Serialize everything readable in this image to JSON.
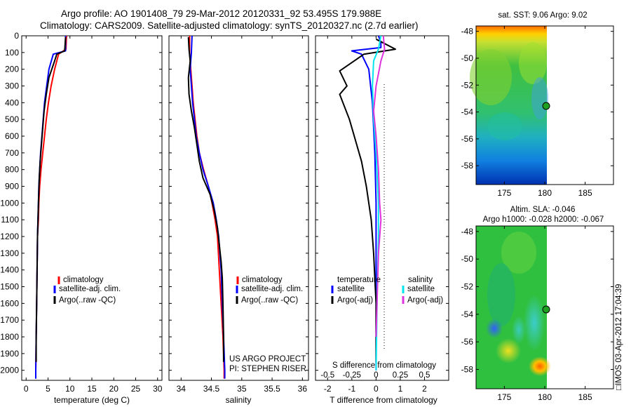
{
  "header": {
    "title_line1": "Argo profile: AO 1901408_79 29-Mar-2012 20120331_92 53.495S 179.988E",
    "title_line2": "Climatology: CARS2009. Satellite-adjusted climatology: synTS_20120327.nc (2.7d earlier)"
  },
  "side_text": "□IMOS 03-Apr-2012 17:04:39",
  "colors": {
    "climatology": "#ff0000",
    "satellite": "#0000ff",
    "argo": "#000000",
    "sal_sat": "#00e5ee",
    "sal_argo": "#dd33dd"
  },
  "chart_data": [
    {
      "type": "line",
      "id": "temperature_profile",
      "xlabel": "temperature (deg C)",
      "xlim": [
        -1,
        31
      ],
      "xticks": [
        0,
        5,
        10,
        15,
        20,
        25,
        30
      ],
      "ylim": [
        2060,
        0
      ],
      "yticks": [
        0,
        100,
        200,
        300,
        400,
        500,
        600,
        700,
        800,
        900,
        1000,
        1100,
        1200,
        1300,
        1400,
        1500,
        1600,
        1700,
        1800,
        1900,
        2000
      ],
      "legend": [
        "climatology",
        "satellite-adj. clim.",
        "Argo(..raw -QC)"
      ],
      "series": [
        {
          "name": "climatology",
          "color": "#ff0000",
          "points": [
            [
              9.2,
              0
            ],
            [
              9.1,
              80
            ],
            [
              7.4,
              110
            ],
            [
              6.5,
              200
            ],
            [
              5.7,
              300
            ],
            [
              5.1,
              400
            ],
            [
              4.6,
              500
            ],
            [
              4.2,
              600
            ],
            [
              3.8,
              700
            ],
            [
              3.4,
              800
            ],
            [
              3.1,
              900
            ],
            [
              2.9,
              1000
            ],
            [
              2.8,
              1100
            ],
            [
              2.6,
              1200
            ],
            [
              2.5,
              1400
            ],
            [
              2.4,
              1600
            ],
            [
              2.3,
              1800
            ],
            [
              2.2,
              2000
            ],
            [
              2.2,
              2050
            ]
          ]
        },
        {
          "name": "satellite-adj. clim.",
          "color": "#0000ff",
          "points": [
            [
              9.0,
              0
            ],
            [
              9.0,
              90
            ],
            [
              6.2,
              110
            ],
            [
              5.2,
              200
            ],
            [
              4.7,
              300
            ],
            [
              4.2,
              400
            ],
            [
              3.9,
              500
            ],
            [
              3.6,
              600
            ],
            [
              3.3,
              700
            ],
            [
              3.1,
              800
            ],
            [
              2.9,
              900
            ],
            [
              2.8,
              1000
            ],
            [
              2.6,
              1200
            ],
            [
              2.5,
              1400
            ],
            [
              2.4,
              1600
            ],
            [
              2.3,
              1800
            ],
            [
              2.2,
              2000
            ],
            [
              2.2,
              2050
            ]
          ]
        },
        {
          "name": "Argo(..raw -QC)",
          "color": "#000000",
          "points": [
            [
              9.0,
              8
            ],
            [
              8.8,
              90
            ],
            [
              7.0,
              110
            ],
            [
              6.5,
              150
            ],
            [
              5.2,
              250
            ],
            [
              4.6,
              350
            ],
            [
              4.1,
              450
            ],
            [
              3.8,
              550
            ],
            [
              3.5,
              650
            ],
            [
              3.2,
              750
            ],
            [
              3.0,
              850
            ],
            [
              2.8,
              1000
            ],
            [
              2.6,
              1200
            ],
            [
              2.5,
              1400
            ],
            [
              2.4,
              1600
            ],
            [
              2.3,
              1800
            ],
            [
              2.3,
              1950
            ]
          ]
        }
      ]
    },
    {
      "type": "line",
      "id": "salinity_profile",
      "xlabel": "salinity",
      "xlim": [
        33.8,
        36.1
      ],
      "xticks": [
        34,
        34.5,
        35,
        35.5,
        36
      ],
      "ylim": [
        2060,
        0
      ],
      "legend": [
        "climatology",
        "satellite-adj. clim.",
        "Argo(..raw -QC)"
      ],
      "series": [
        {
          "name": "climatology",
          "color": "#ff0000",
          "points": [
            [
              34.14,
              0
            ],
            [
              34.14,
              100
            ],
            [
              34.16,
              200
            ],
            [
              34.18,
              300
            ],
            [
              34.2,
              400
            ],
            [
              34.23,
              500
            ],
            [
              34.26,
              600
            ],
            [
              34.3,
              700
            ],
            [
              34.37,
              800
            ],
            [
              34.45,
              900
            ],
            [
              34.51,
              1000
            ],
            [
              34.56,
              1100
            ],
            [
              34.6,
              1200
            ],
            [
              34.63,
              1400
            ],
            [
              34.66,
              1600
            ],
            [
              34.69,
              1800
            ],
            [
              34.71,
              2000
            ],
            [
              34.71,
              2050
            ]
          ]
        },
        {
          "name": "satellite-adj. clim.",
          "color": "#0000ff",
          "points": [
            [
              34.18,
              0
            ],
            [
              34.17,
              100
            ],
            [
              34.16,
              150
            ],
            [
              34.15,
              200
            ],
            [
              34.17,
              300
            ],
            [
              34.19,
              400
            ],
            [
              34.22,
              500
            ],
            [
              34.25,
              600
            ],
            [
              34.3,
              700
            ],
            [
              34.36,
              800
            ],
            [
              34.45,
              900
            ],
            [
              34.53,
              1000
            ],
            [
              34.58,
              1100
            ],
            [
              34.62,
              1200
            ],
            [
              34.66,
              1400
            ],
            [
              34.68,
              1600
            ],
            [
              34.7,
              1800
            ],
            [
              34.72,
              2000
            ],
            [
              34.72,
              2050
            ]
          ]
        },
        {
          "name": "Argo(..raw -QC)",
          "color": "#000000",
          "points": [
            [
              34.12,
              8
            ],
            [
              34.13,
              80
            ],
            [
              34.15,
              150
            ],
            [
              34.12,
              250
            ],
            [
              34.13,
              350
            ],
            [
              34.17,
              450
            ],
            [
              34.22,
              550
            ],
            [
              34.26,
              650
            ],
            [
              34.3,
              750
            ],
            [
              34.36,
              850
            ],
            [
              34.48,
              950
            ],
            [
              34.55,
              1050
            ],
            [
              34.6,
              1150
            ],
            [
              34.63,
              1250
            ],
            [
              34.66,
              1350
            ],
            [
              34.68,
              1450
            ],
            [
              34.69,
              1600
            ],
            [
              34.7,
              1800
            ],
            [
              34.7,
              1950
            ]
          ]
        }
      ]
    },
    {
      "type": "line",
      "id": "difference_profile",
      "xlabel": "T difference from climatology",
      "xlabel_top": "S difference from climatology",
      "xlim": [
        -2.5,
        3
      ],
      "xticks": [
        -2,
        -1,
        0,
        1,
        2
      ],
      "xticks_top": [
        -0.5,
        -0.25,
        0,
        0.25,
        0.5
      ],
      "ylim": [
        2060,
        0
      ],
      "legend_temperature": [
        "temperature",
        "satellite",
        "Argo(-adj)"
      ],
      "legend_salinity": [
        "salinity",
        "satellite",
        "Argo(-adj)"
      ],
      "series": [
        {
          "name": "satellite",
          "color": "#0000ff",
          "points": [
            [
              0.1,
              0
            ],
            [
              0.2,
              40
            ],
            [
              0.2,
              70
            ],
            [
              -1.0,
              90
            ],
            [
              -0.6,
              110
            ],
            [
              -0.3,
              200
            ],
            [
              -0.15,
              400
            ],
            [
              -0.05,
              700
            ],
            [
              0.0,
              1000
            ],
            [
              0.0,
              2000
            ]
          ]
        },
        {
          "name": "Argo(-adj)",
          "color": "#000000",
          "points": [
            [
              0.0,
              20
            ],
            [
              0.8,
              80
            ],
            [
              -0.5,
              110
            ],
            [
              -1.5,
              210
            ],
            [
              -1.2,
              300
            ],
            [
              -1.5,
              350
            ],
            [
              -1.1,
              500
            ],
            [
              -0.8,
              650
            ],
            [
              -0.6,
              750
            ],
            [
              -0.4,
              900
            ],
            [
              -0.2,
              1100
            ],
            [
              -0.1,
              1300
            ],
            [
              0.0,
              1600
            ],
            [
              0.0,
              1950
            ]
          ]
        },
        {
          "name": "salinity satellite",
          "color": "#00e5ee",
          "points": [
            [
              0.2,
              0
            ],
            [
              0.1,
              80
            ],
            [
              -0.1,
              150
            ],
            [
              -0.15,
              300
            ],
            [
              -0.1,
              500
            ],
            [
              0.0,
              700
            ],
            [
              0.1,
              1000
            ],
            [
              0.1,
              1200
            ],
            [
              0.05,
              1500
            ],
            [
              0.0,
              2000
            ]
          ]
        },
        {
          "name": "salinity Argo(-adj)",
          "color": "#dd33dd",
          "points": [
            [
              0.3,
              0
            ],
            [
              0.35,
              80
            ],
            [
              0.2,
              150
            ],
            [
              0.0,
              300
            ],
            [
              -0.1,
              450
            ],
            [
              0.0,
              600
            ],
            [
              0.1,
              800
            ],
            [
              0.15,
              1000
            ],
            [
              0.2,
              1100
            ],
            [
              0.1,
              1300
            ],
            [
              0.0,
              1800
            ]
          ]
        }
      ]
    },
    {
      "type": "heatmap",
      "id": "sst_map",
      "title": "sat. SST: 9.06  Argo: 9.02",
      "xlim": [
        171.5,
        188.5
      ],
      "ylim": [
        -59.4,
        -47.6
      ],
      "xticks": [
        175,
        180,
        185
      ],
      "yticks": [
        -48,
        -50,
        -52,
        -54,
        -56,
        -58
      ],
      "data_xrange": [
        171.5,
        180
      ],
      "marker": [
        179.988,
        -53.495
      ]
    },
    {
      "type": "heatmap",
      "id": "sla_map",
      "title_line1": "Altim. SLA: -0.046",
      "title_line2": "Argo h1000: -0.028 h2000: -0.067",
      "xlim": [
        171.5,
        188.5
      ],
      "ylim": [
        -59.4,
        -47.6
      ],
      "xticks": [
        175,
        180,
        185
      ],
      "yticks": [
        -48,
        -50,
        -52,
        -54,
        -56,
        -58
      ],
      "data_xrange": [
        171.5,
        180
      ],
      "marker": [
        179.988,
        -53.495
      ]
    }
  ],
  "annotations": {
    "project": "US ARGO PROJECT",
    "pi": "PI: STEPHEN RISER"
  }
}
